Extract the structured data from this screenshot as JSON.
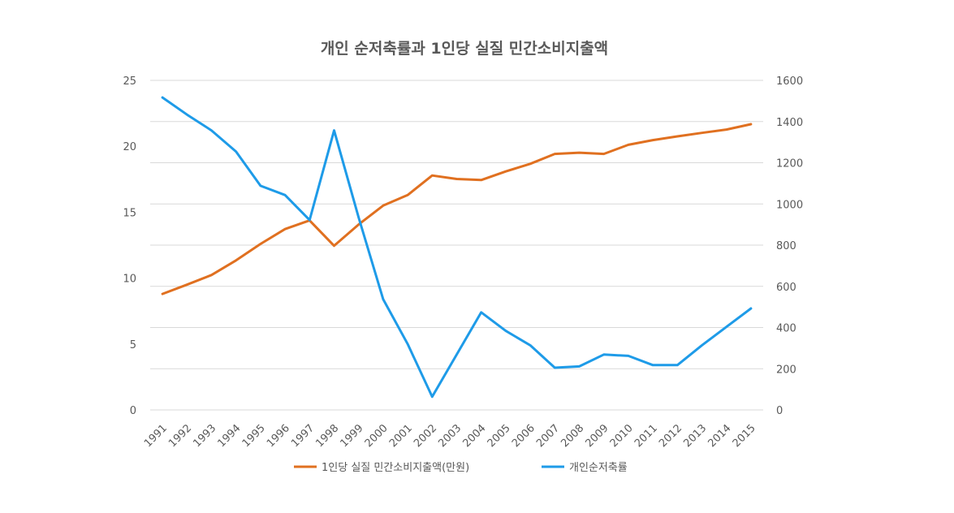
{
  "chart_data": {
    "type": "line",
    "title": "개인 순저축률과 1인당 실질 민간소비지출액",
    "xlabel": "",
    "ylabel": "",
    "categories": [
      "1991",
      "1992",
      "1993",
      "1994",
      "1995",
      "1996",
      "1997",
      "1998",
      "1999",
      "2000",
      "2001",
      "2002",
      "2003",
      "2004",
      "2005",
      "2006",
      "2007",
      "2008",
      "2009",
      "2010",
      "2011",
      "2012",
      "2013",
      "2014",
      "2015"
    ],
    "y_left": {
      "ylim": [
        0,
        25
      ],
      "ticks": [
        "0",
        "5",
        "10",
        "15",
        "20",
        "25"
      ]
    },
    "y_right": {
      "ylim": [
        0,
        1600
      ],
      "ticks": [
        "0",
        "200",
        "400",
        "600",
        "800",
        "1000",
        "1200",
        "1400",
        "1600"
      ]
    },
    "grid": true,
    "legend_position": "bottom",
    "series": [
      {
        "name": "1인당 실질 민간소비지출액(만원)",
        "axis": "right",
        "color": "#e07020",
        "values": [
          563,
          608,
          655,
          726,
          806,
          878,
          920,
          797,
          900,
          992,
          1043,
          1138,
          1121,
          1116,
          1158,
          1195,
          1243,
          1249,
          1243,
          1287,
          1310,
          1328,
          1345,
          1361,
          1387
        ]
      },
      {
        "name": "개인순저축률",
        "axis": "left",
        "color": "#1e9be8",
        "values": [
          23.7,
          22.4,
          21.2,
          19.6,
          17.0,
          16.3,
          14.4,
          21.2,
          14.6,
          8.4,
          5.0,
          1.0,
          4.2,
          7.4,
          6.0,
          4.9,
          3.2,
          3.3,
          4.2,
          4.1,
          3.4,
          3.4,
          4.9,
          6.3,
          7.7
        ]
      }
    ]
  }
}
